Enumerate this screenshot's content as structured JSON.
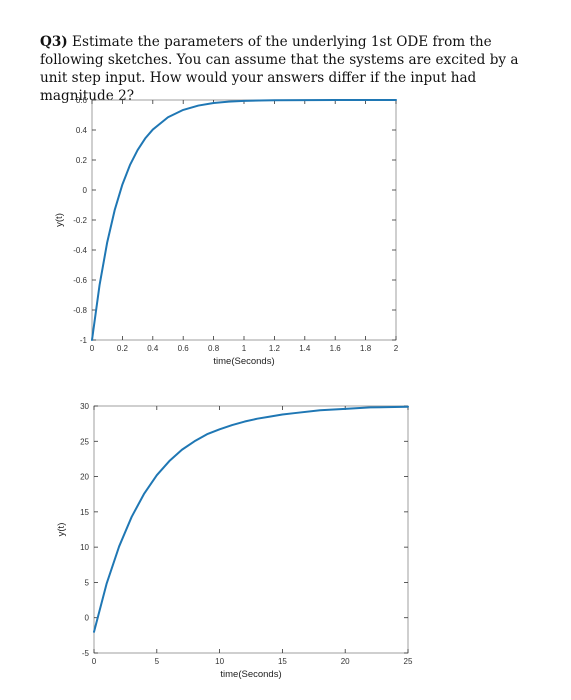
{
  "question": {
    "number": "Q3)",
    "text": " Estimate the parameters of the underlying 1st ODE from the following sketches. You can assume that the systems are excited by a unit step input. How would your answers differ if the input had magnitude 2?"
  },
  "colors": {
    "line": "#1f77b4",
    "axes": "#333333",
    "frame": "#888888"
  },
  "chart_data": [
    {
      "type": "line",
      "xlabel": "time(Seconds)",
      "ylabel": "y(t)",
      "xlim": [
        0,
        2
      ],
      "ylim": [
        -1,
        0.6
      ],
      "xticks": [
        0,
        0.2,
        0.4,
        0.6,
        0.8,
        1,
        1.2,
        1.4,
        1.6,
        1.8,
        2
      ],
      "xtick_labels": [
        "0",
        "0.2",
        "0.4",
        "0.6",
        "0.8",
        "1",
        "1.2",
        "1.4",
        "1.6",
        "1.8",
        "2"
      ],
      "yticks": [
        -1,
        -0.8,
        -0.6,
        -0.4,
        -0.2,
        0,
        0.2,
        0.4,
        0.6
      ],
      "ytick_labels": [
        "-1",
        "-0.8",
        "-0.6",
        "-0.4",
        "-0.2",
        "0",
        "0.2",
        "0.4",
        "0.6"
      ],
      "grid": false,
      "x": [
        0,
        0.05,
        0.1,
        0.15,
        0.2,
        0.25,
        0.3,
        0.35,
        0.4,
        0.5,
        0.6,
        0.7,
        0.8,
        0.9,
        1.0,
        1.1,
        1.2,
        1.4,
        1.6,
        1.8,
        2.0
      ],
      "y": [
        -1,
        -0.632,
        -0.349,
        -0.131,
        0.037,
        0.167,
        0.266,
        0.344,
        0.403,
        0.485,
        0.534,
        0.563,
        0.58,
        0.589,
        0.594,
        0.597,
        0.598,
        0.599,
        0.6,
        0.6,
        0.6
      ]
    },
    {
      "type": "line",
      "xlabel": "time(Seconds)",
      "ylabel": "y(t)",
      "xlim": [
        0,
        25
      ],
      "ylim": [
        -5,
        30
      ],
      "xticks": [
        0,
        5,
        10,
        15,
        20,
        25
      ],
      "xtick_labels": [
        "0",
        "5",
        "10",
        "15",
        "20",
        "25"
      ],
      "yticks": [
        -5,
        0,
        5,
        10,
        15,
        20,
        25,
        30
      ],
      "ytick_labels": [
        "-5",
        "0",
        "5",
        "10",
        "15",
        "20",
        "25",
        "30"
      ],
      "grid": false,
      "x": [
        0,
        1,
        2,
        3,
        4,
        5,
        6,
        7,
        8,
        9,
        10,
        11,
        12,
        13,
        14,
        15,
        16,
        18,
        20,
        22,
        25
      ],
      "y": [
        -2,
        4.8,
        10.1,
        14.3,
        17.6,
        20.2,
        22.2,
        23.8,
        25.0,
        26.0,
        26.7,
        27.3,
        27.8,
        28.2,
        28.5,
        28.8,
        29.0,
        29.4,
        29.6,
        29.8,
        29.9
      ]
    }
  ]
}
